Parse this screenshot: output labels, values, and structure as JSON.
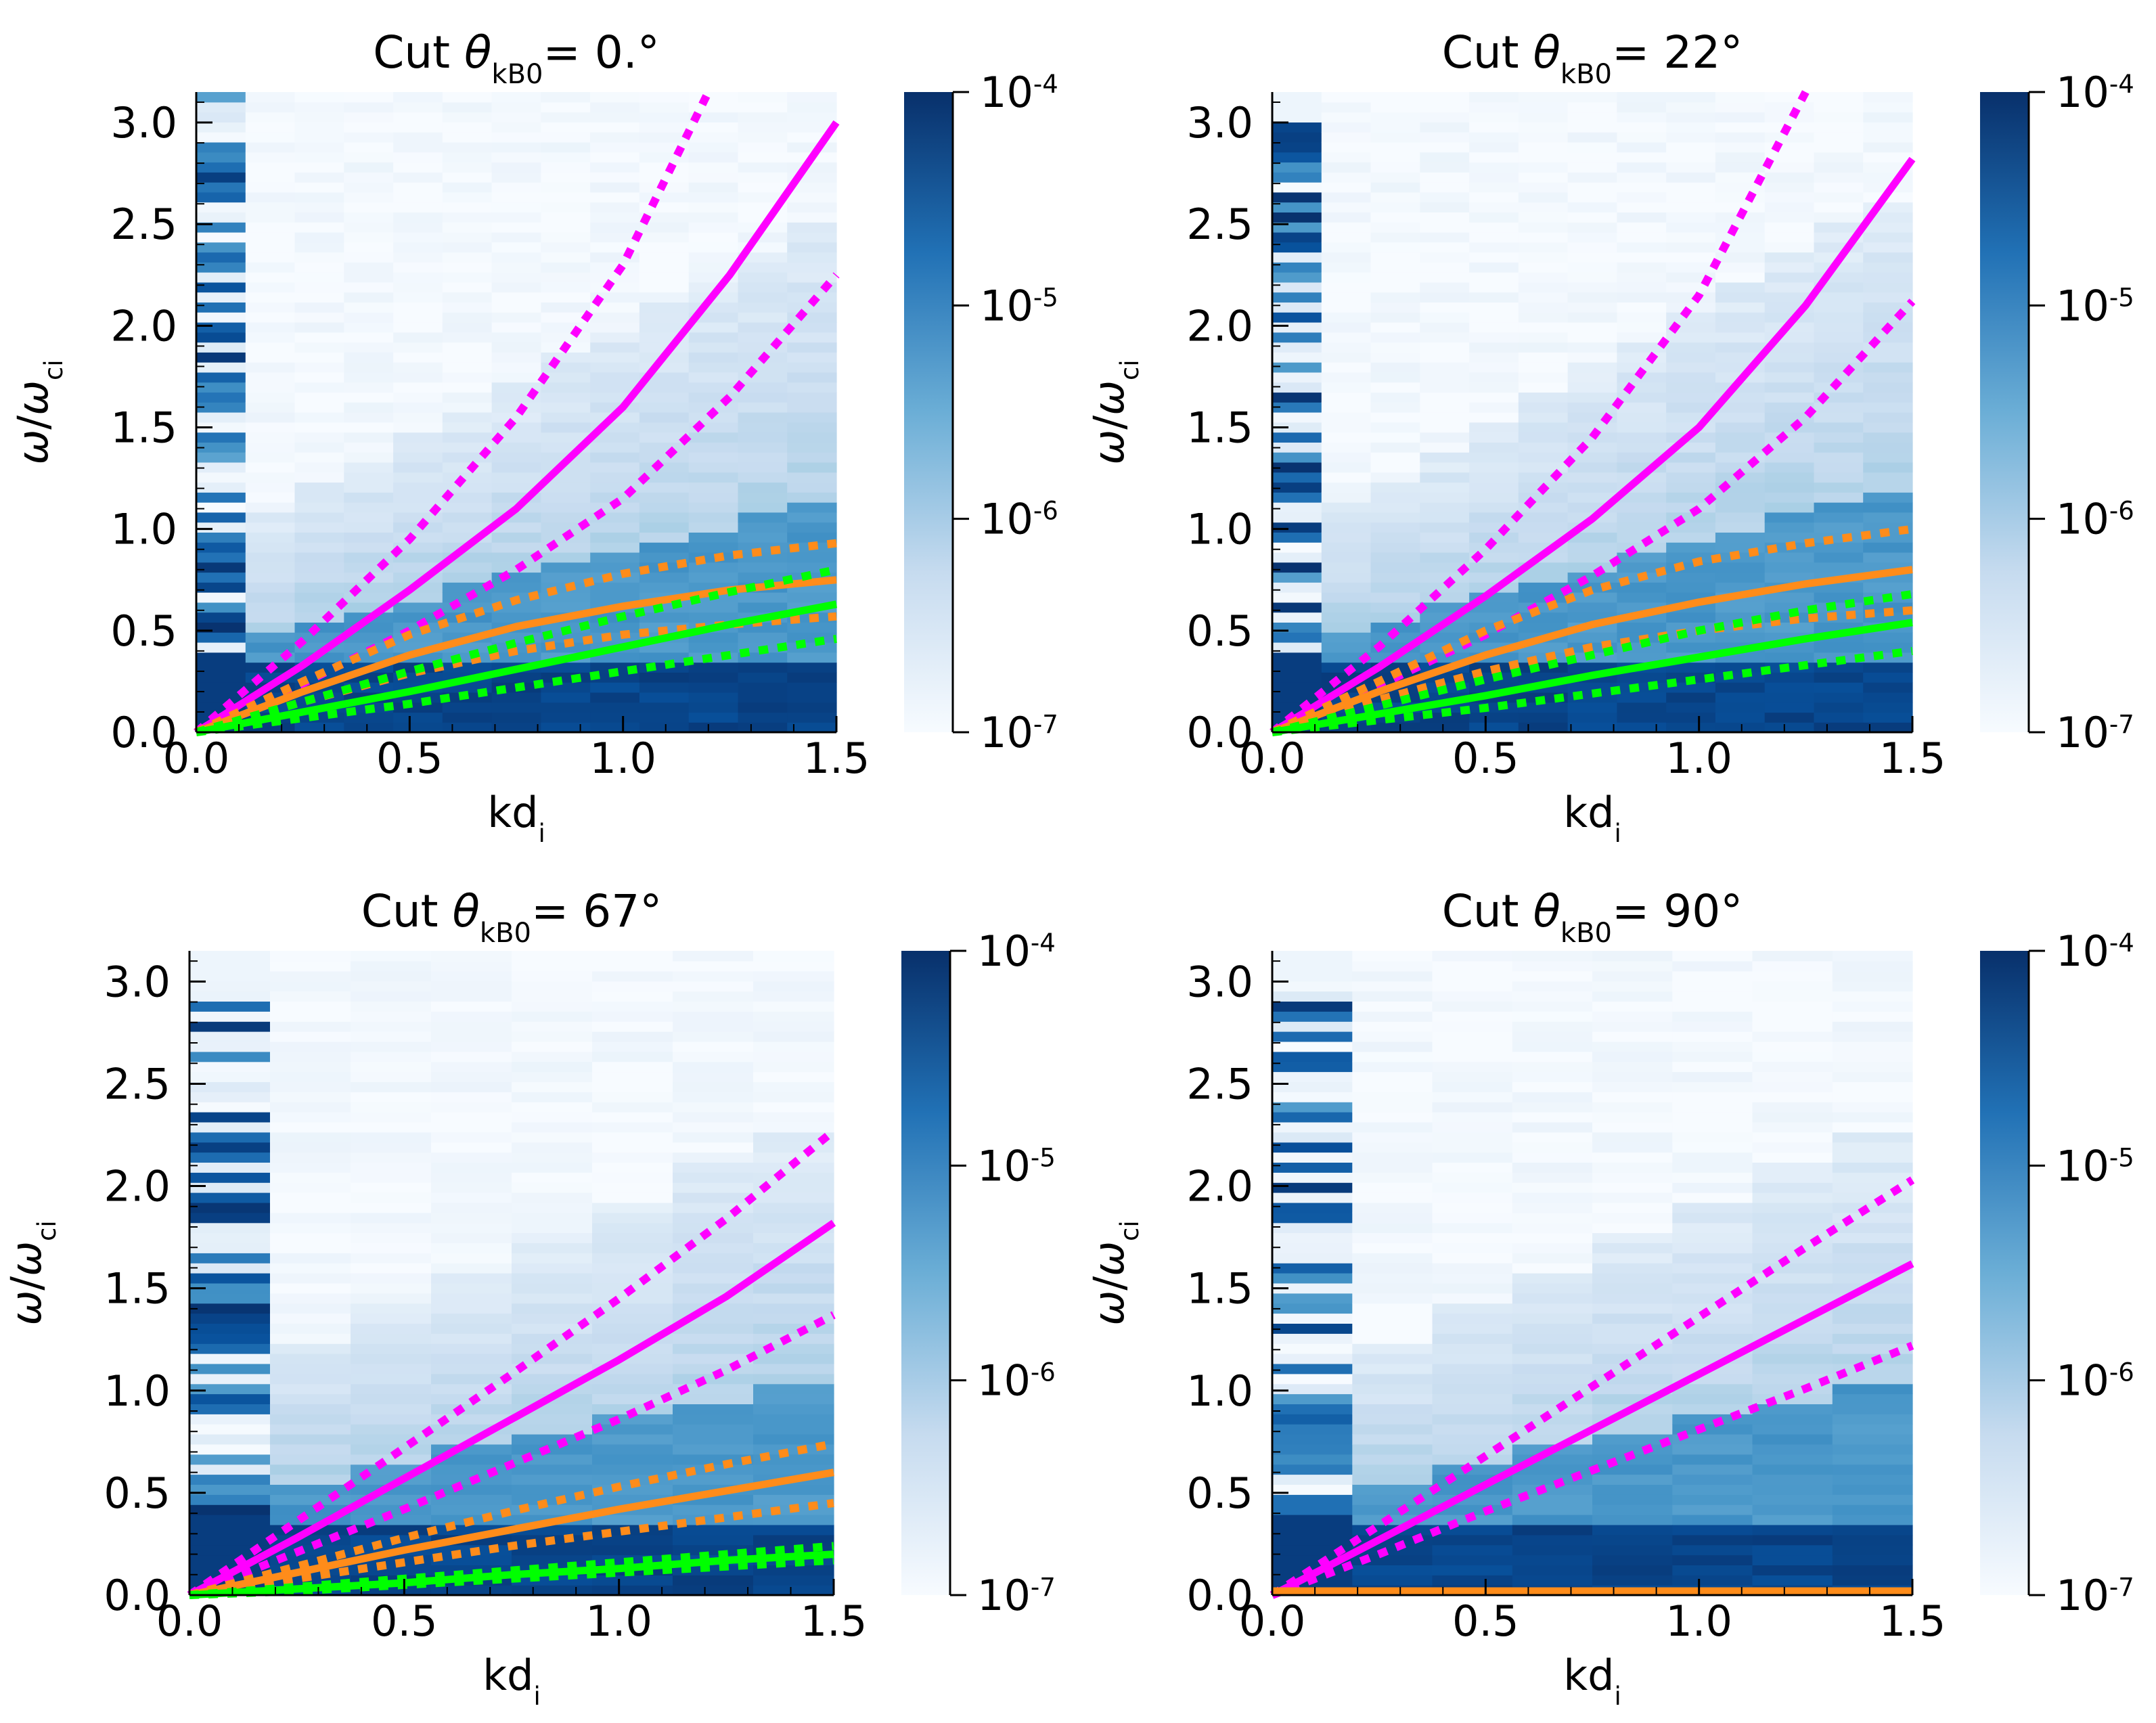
{
  "chart_data": [
    {
      "type": "heatmap",
      "title_text": "Cut θ",
      "title_sub": "kB0",
      "title_value": "= 0.°",
      "xlabel_main": "kd",
      "xlabel_sub": "i",
      "ylabel_main": "ω/ω",
      "ylabel_sub": "ci",
      "xlim": [
        0,
        1.5
      ],
      "ylim": [
        0,
        3.15
      ],
      "xticks": [
        0,
        0.5,
        1.0,
        1.5
      ],
      "xtick_labels": [
        "0.0",
        "0.5",
        "1.0",
        "1.5"
      ],
      "yticks": [
        0,
        0.5,
        1.0,
        1.5,
        2.0,
        2.5,
        3.0
      ],
      "ytick_labels": [
        "0.0",
        "0.5",
        "1.0",
        "1.5",
        "2.0",
        "2.5",
        "3.0"
      ],
      "colorbar": {
        "scale": "log",
        "min_exp": -7,
        "max_exp": -4,
        "ticks": [
          "10^-7",
          "10^-6",
          "10^-5",
          "10^-4"
        ],
        "colormap": "Blues"
      },
      "dispersion_curves": [
        {
          "color": "#ff00ff",
          "style": "solid",
          "x": [
            0,
            0.25,
            0.5,
            0.75,
            1.0,
            1.25,
            1.5
          ],
          "y": [
            0,
            0.33,
            0.7,
            1.1,
            1.6,
            2.25,
            3.0
          ]
        },
        {
          "color": "#ff00ff",
          "style": "dotted",
          "x": [
            0,
            0.25,
            0.5,
            0.75,
            1.0,
            1.2
          ],
          "y": [
            0,
            0.45,
            0.95,
            1.55,
            2.3,
            3.15
          ]
        },
        {
          "color": "#ff00ff",
          "style": "dotted",
          "x": [
            0,
            0.25,
            0.5,
            0.75,
            1.0,
            1.25,
            1.5
          ],
          "y": [
            0,
            0.24,
            0.5,
            0.8,
            1.15,
            1.65,
            2.25
          ]
        },
        {
          "color": "#ff8c1a",
          "style": "solid",
          "x": [
            0,
            0.25,
            0.5,
            0.75,
            1.0,
            1.25,
            1.5
          ],
          "y": [
            0,
            0.2,
            0.38,
            0.52,
            0.62,
            0.7,
            0.75
          ]
        },
        {
          "color": "#ff8c1a",
          "style": "dotted",
          "x": [
            0,
            0.25,
            0.5,
            0.75,
            1.0,
            1.25,
            1.5
          ],
          "y": [
            0,
            0.25,
            0.48,
            0.65,
            0.78,
            0.87,
            0.93
          ]
        },
        {
          "color": "#ff8c1a",
          "style": "dotted",
          "x": [
            0,
            0.25,
            0.5,
            0.75,
            1.0,
            1.25,
            1.5
          ],
          "y": [
            0,
            0.15,
            0.29,
            0.4,
            0.48,
            0.53,
            0.57
          ]
        },
        {
          "color": "#00ff00",
          "style": "solid",
          "x": [
            0,
            0.25,
            0.5,
            0.75,
            1.0,
            1.25,
            1.5
          ],
          "y": [
            0,
            0.1,
            0.2,
            0.31,
            0.42,
            0.53,
            0.63
          ]
        },
        {
          "color": "#00ff00",
          "style": "dotted",
          "x": [
            0,
            0.25,
            0.5,
            0.75,
            1.0,
            1.25,
            1.5
          ],
          "y": [
            0,
            0.15,
            0.3,
            0.44,
            0.57,
            0.69,
            0.8
          ]
        },
        {
          "color": "#00ff00",
          "style": "dotted",
          "x": [
            0,
            0.25,
            0.5,
            0.75,
            1.0,
            1.25,
            1.5
          ],
          "y": [
            0,
            0.07,
            0.14,
            0.22,
            0.3,
            0.38,
            0.46
          ]
        }
      ]
    },
    {
      "type": "heatmap",
      "title_text": "Cut θ",
      "title_sub": "kB0",
      "title_value": "= 22°",
      "xlabel_main": "kd",
      "xlabel_sub": "i",
      "ylabel_main": "ω/ω",
      "ylabel_sub": "ci",
      "xlim": [
        0,
        1.5
      ],
      "ylim": [
        0,
        3.15
      ],
      "xticks": [
        0,
        0.5,
        1.0,
        1.5
      ],
      "xtick_labels": [
        "0.0",
        "0.5",
        "1.0",
        "1.5"
      ],
      "yticks": [
        0,
        0.5,
        1.0,
        1.5,
        2.0,
        2.5,
        3.0
      ],
      "ytick_labels": [
        "0.0",
        "0.5",
        "1.0",
        "1.5",
        "2.0",
        "2.5",
        "3.0"
      ],
      "colorbar": {
        "scale": "log",
        "min_exp": -7,
        "max_exp": -4,
        "ticks": [
          "10^-7",
          "10^-6",
          "10^-5",
          "10^-4"
        ],
        "colormap": "Blues"
      },
      "dispersion_curves": [
        {
          "color": "#ff00ff",
          "style": "solid",
          "x": [
            0,
            0.25,
            0.5,
            0.75,
            1.0,
            1.25,
            1.5
          ],
          "y": [
            0,
            0.32,
            0.67,
            1.05,
            1.5,
            2.1,
            2.82
          ]
        },
        {
          "color": "#ff00ff",
          "style": "dotted",
          "x": [
            0,
            0.25,
            0.5,
            0.75,
            1.0,
            1.25
          ],
          "y": [
            0,
            0.42,
            0.9,
            1.45,
            2.15,
            3.15
          ]
        },
        {
          "color": "#ff00ff",
          "style": "dotted",
          "x": [
            0,
            0.25,
            0.5,
            0.75,
            1.0,
            1.25,
            1.5
          ],
          "y": [
            0,
            0.23,
            0.48,
            0.77,
            1.1,
            1.55,
            2.12
          ]
        },
        {
          "color": "#ff8c1a",
          "style": "solid",
          "x": [
            0,
            0.25,
            0.5,
            0.75,
            1.0,
            1.25,
            1.5
          ],
          "y": [
            0,
            0.2,
            0.38,
            0.53,
            0.64,
            0.73,
            0.8
          ]
        },
        {
          "color": "#ff8c1a",
          "style": "dotted",
          "x": [
            0,
            0.25,
            0.5,
            0.75,
            1.0,
            1.25,
            1.5
          ],
          "y": [
            0,
            0.25,
            0.5,
            0.7,
            0.84,
            0.93,
            1.0
          ]
        },
        {
          "color": "#ff8c1a",
          "style": "dotted",
          "x": [
            0,
            0.25,
            0.5,
            0.75,
            1.0,
            1.25,
            1.5
          ],
          "y": [
            0,
            0.16,
            0.3,
            0.42,
            0.5,
            0.56,
            0.6
          ]
        },
        {
          "color": "#00ff00",
          "style": "solid",
          "x": [
            0,
            0.25,
            0.5,
            0.75,
            1.0,
            1.25,
            1.5
          ],
          "y": [
            0,
            0.09,
            0.18,
            0.28,
            0.37,
            0.46,
            0.54
          ]
        },
        {
          "color": "#00ff00",
          "style": "dotted",
          "x": [
            0,
            0.25,
            0.5,
            0.75,
            1.0,
            1.25,
            1.5
          ],
          "y": [
            0,
            0.13,
            0.26,
            0.38,
            0.5,
            0.6,
            0.68
          ]
        },
        {
          "color": "#00ff00",
          "style": "dotted",
          "x": [
            0,
            0.25,
            0.5,
            0.75,
            1.0,
            1.25,
            1.5
          ],
          "y": [
            0,
            0.06,
            0.12,
            0.19,
            0.26,
            0.33,
            0.4
          ]
        }
      ]
    },
    {
      "type": "heatmap",
      "title_text": "Cut θ",
      "title_sub": "kB0",
      "title_value": "= 67°",
      "xlabel_main": "kd",
      "xlabel_sub": "i",
      "ylabel_main": "ω/ω",
      "ylabel_sub": "ci",
      "xlim": [
        0,
        1.5
      ],
      "ylim": [
        0,
        3.15
      ],
      "xticks": [
        0,
        0.5,
        1.0,
        1.5
      ],
      "xtick_labels": [
        "0.0",
        "0.5",
        "1.0",
        "1.5"
      ],
      "yticks": [
        0,
        0.5,
        1.0,
        1.5,
        2.0,
        2.5,
        3.0
      ],
      "ytick_labels": [
        "0.0",
        "0.5",
        "1.0",
        "1.5",
        "2.0",
        "2.5",
        "3.0"
      ],
      "colorbar": {
        "scale": "log",
        "min_exp": -7,
        "max_exp": -4,
        "ticks": [
          "10^-7",
          "10^-6",
          "10^-5",
          "10^-4"
        ],
        "colormap": "Blues"
      },
      "dispersion_curves": [
        {
          "color": "#ff00ff",
          "style": "solid",
          "x": [
            0,
            0.25,
            0.5,
            0.75,
            1.0,
            1.25,
            1.5
          ],
          "y": [
            0,
            0.28,
            0.57,
            0.86,
            1.15,
            1.46,
            1.82
          ]
        },
        {
          "color": "#ff00ff",
          "style": "dotted",
          "x": [
            0,
            0.25,
            0.5,
            0.75,
            1.0,
            1.25,
            1.5
          ],
          "y": [
            0,
            0.36,
            0.72,
            1.08,
            1.45,
            1.84,
            2.27
          ]
        },
        {
          "color": "#ff00ff",
          "style": "dotted",
          "x": [
            0,
            0.25,
            0.5,
            0.75,
            1.0,
            1.25,
            1.5
          ],
          "y": [
            0,
            0.21,
            0.42,
            0.64,
            0.86,
            1.1,
            1.37
          ]
        },
        {
          "color": "#ff8c1a",
          "style": "solid",
          "x": [
            0,
            0.25,
            0.5,
            0.75,
            1.0,
            1.25,
            1.5
          ],
          "y": [
            0,
            0.11,
            0.22,
            0.32,
            0.42,
            0.51,
            0.6
          ]
        },
        {
          "color": "#ff8c1a",
          "style": "dotted",
          "x": [
            0,
            0.25,
            0.5,
            0.75,
            1.0,
            1.25,
            1.5
          ],
          "y": [
            0,
            0.14,
            0.28,
            0.41,
            0.53,
            0.64,
            0.74
          ]
        },
        {
          "color": "#ff8c1a",
          "style": "dotted",
          "x": [
            0,
            0.25,
            0.5,
            0.75,
            1.0,
            1.25,
            1.5
          ],
          "y": [
            0,
            0.08,
            0.16,
            0.24,
            0.31,
            0.38,
            0.45
          ]
        },
        {
          "color": "#00ff00",
          "style": "solid",
          "x": [
            0,
            0.25,
            0.5,
            0.75,
            1.0,
            1.25,
            1.5
          ],
          "y": [
            0,
            0.03,
            0.06,
            0.1,
            0.13,
            0.17,
            0.2
          ]
        },
        {
          "color": "#00ff00",
          "style": "dotted",
          "x": [
            0,
            0.25,
            0.5,
            0.75,
            1.0,
            1.25,
            1.5
          ],
          "y": [
            0,
            0.04,
            0.08,
            0.12,
            0.16,
            0.2,
            0.24
          ]
        },
        {
          "color": "#00ff00",
          "style": "dotted",
          "x": [
            0,
            0.25,
            0.5,
            0.75,
            1.0,
            1.25,
            1.5
          ],
          "y": [
            0,
            0.02,
            0.05,
            0.08,
            0.11,
            0.14,
            0.17
          ]
        }
      ]
    },
    {
      "type": "heatmap",
      "title_text": "Cut θ",
      "title_sub": "kB0",
      "title_value": "= 90°",
      "xlabel_main": "kd",
      "xlabel_sub": "i",
      "ylabel_main": "ω/ω",
      "ylabel_sub": "ci",
      "xlim": [
        0,
        1.5
      ],
      "ylim": [
        0,
        3.15
      ],
      "xticks": [
        0,
        0.5,
        1.0,
        1.5
      ],
      "xtick_labels": [
        "0.0",
        "0.5",
        "1.0",
        "1.5"
      ],
      "yticks": [
        0,
        0.5,
        1.0,
        1.5,
        2.0,
        2.5,
        3.0
      ],
      "ytick_labels": [
        "0.0",
        "0.5",
        "1.0",
        "1.5",
        "2.0",
        "2.5",
        "3.0"
      ],
      "colorbar": {
        "scale": "log",
        "min_exp": -7,
        "max_exp": -4,
        "ticks": [
          "10^-7",
          "10^-6",
          "10^-5",
          "10^-4"
        ],
        "colormap": "Blues"
      },
      "dispersion_curves": [
        {
          "color": "#ff00ff",
          "style": "solid",
          "x": [
            0,
            0.25,
            0.5,
            0.75,
            1.0,
            1.25,
            1.5
          ],
          "y": [
            0,
            0.27,
            0.54,
            0.81,
            1.08,
            1.35,
            1.62
          ]
        },
        {
          "color": "#ff00ff",
          "style": "dotted",
          "x": [
            0,
            0.25,
            0.5,
            0.75,
            1.0,
            1.25,
            1.5
          ],
          "y": [
            0,
            0.34,
            0.68,
            1.02,
            1.36,
            1.7,
            2.03
          ]
        },
        {
          "color": "#ff00ff",
          "style": "dotted",
          "x": [
            0,
            0.25,
            0.5,
            0.75,
            1.0,
            1.25,
            1.5
          ],
          "y": [
            0,
            0.2,
            0.41,
            0.61,
            0.81,
            1.01,
            1.22
          ]
        },
        {
          "color": "#ff8c1a",
          "style": "solid",
          "x": [
            0,
            1.5
          ],
          "y": [
            0.02,
            0.02
          ]
        }
      ]
    }
  ]
}
